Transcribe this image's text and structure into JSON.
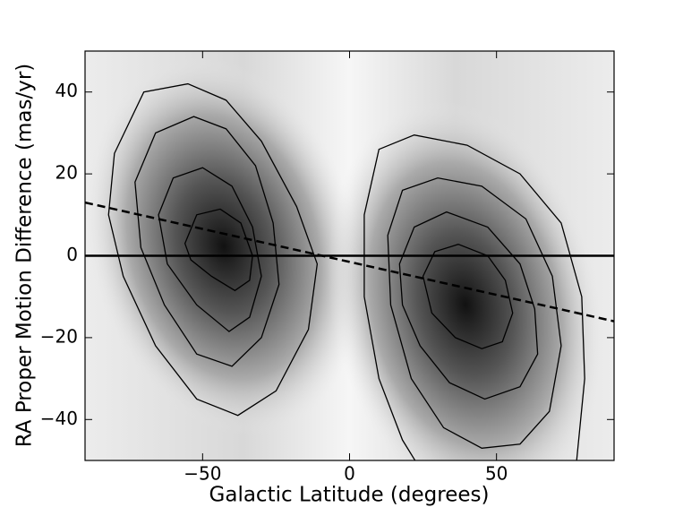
{
  "chart_data": {
    "type": "contour",
    "x_label": "Galactic Latitude (degrees)",
    "y_label": "RA Proper Motion Difference (mas/yr)",
    "xlim": [
      -90,
      90
    ],
    "ylim": [
      -50,
      50
    ],
    "xticks": [
      {
        "value": -50,
        "label": "−50"
      },
      0,
      50
    ],
    "yticks": [
      {
        "value": -40,
        "label": "−40"
      },
      {
        "value": -20,
        "label": "−20"
      },
      0,
      20,
      40
    ],
    "color": "#000000",
    "hline": 0,
    "fit_line": {
      "x": [
        -90,
        90
      ],
      "y": [
        13,
        -16
      ]
    },
    "contours": [
      {
        "x": [
          -80,
          -70,
          -55,
          -42,
          -30,
          -18,
          -11,
          -14,
          -25,
          -38,
          -52,
          -66,
          -77,
          -82
        ],
        "y": [
          25,
          40,
          42,
          38,
          28,
          12,
          -2,
          -18,
          -33,
          -39,
          -35,
          -22,
          -5,
          10
        ]
      },
      {
        "x": [
          -73,
          -66,
          -53,
          -42,
          -32,
          -26,
          -24,
          -30,
          -40,
          -52,
          -63,
          -71
        ],
        "y": [
          18,
          30,
          34,
          31,
          22,
          8,
          -7,
          -20,
          -27,
          -24,
          -12,
          2
        ]
      },
      {
        "x": [
          -65,
          -60,
          -50,
          -40,
          -33,
          -30,
          -34,
          -41,
          -52,
          -62
        ],
        "y": [
          10,
          19,
          21.5,
          17,
          7,
          -5,
          -15,
          -18.5,
          -12,
          -2
        ]
      },
      {
        "x": [
          -56,
          -52,
          -44,
          -37,
          -33,
          -34,
          -39,
          -47,
          -54
        ],
        "y": [
          3,
          10,
          11.4,
          8,
          0,
          -6,
          -8.5,
          -5,
          -1
        ]
      },
      {
        "x": [
          5,
          10,
          22,
          40,
          58,
          72,
          79,
          80,
          77,
          24,
          18,
          10,
          5
        ],
        "y": [
          10,
          26,
          29.5,
          27,
          20,
          8,
          -10,
          -30,
          -52,
          -52,
          -45,
          -30,
          -10
        ]
      },
      {
        "x": [
          13,
          18,
          30,
          45,
          60,
          69,
          72,
          68,
          58,
          45,
          32,
          21,
          14
        ],
        "y": [
          5,
          16,
          19,
          17,
          9,
          -5,
          -22,
          -38,
          -46,
          -47,
          -42,
          -30,
          -12
        ]
      },
      {
        "x": [
          17,
          22,
          33,
          47,
          58,
          63,
          64,
          58,
          46,
          34,
          24,
          18
        ],
        "y": [
          -2,
          7,
          10.7,
          7,
          -2,
          -13,
          -24,
          -32,
          -35,
          -31,
          -22,
          -12
        ]
      },
      {
        "x": [
          25,
          29,
          37,
          47,
          53,
          55.5,
          52,
          45,
          36,
          28
        ],
        "y": [
          -5,
          1,
          2.8,
          0,
          -6,
          -14,
          -21,
          -22.7,
          -20,
          -14
        ]
      }
    ]
  }
}
